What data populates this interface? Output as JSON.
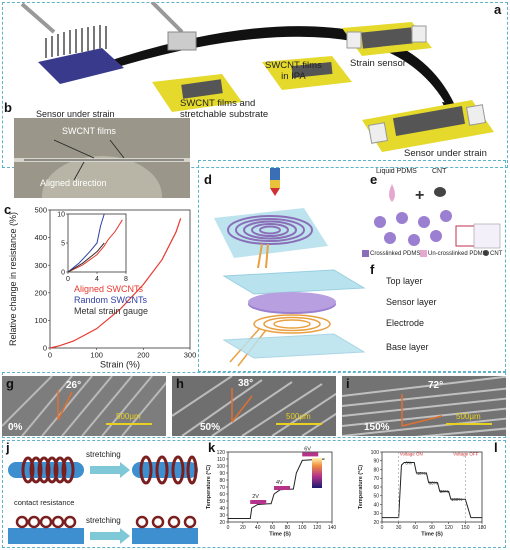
{
  "panels": {
    "a": {
      "label": "a",
      "captions": {
        "films_substrate_1": "SWCNT films and",
        "films_substrate_2": "stretchable substrate",
        "films_ipa_1": "SWCNT films",
        "films_ipa_2": "in IPA",
        "strain_sensor": "Strain sensor",
        "sensor_under_strain": "Sensor under strain"
      }
    },
    "b": {
      "label": "b",
      "title": "Sensor under strain",
      "films": "SWCNT films",
      "aligned": "Aligned direction"
    },
    "c": {
      "label": "c"
    },
    "d": {
      "label": "d"
    },
    "e": {
      "label": "e",
      "liquid_pdms": "Liquid PDMS",
      "cnt": "CNT",
      "legend_crosslinked": "Crosslinked PDMS",
      "legend_uncrosslinked": "Un-crosslinked PDMS",
      "legend_cnt": "CNT"
    },
    "f": {
      "label": "f",
      "layers": [
        "Top layer",
        "Sensor layer",
        "Electrode",
        "Base layer"
      ]
    },
    "g": {
      "label": "g",
      "angle": "26°",
      "strain": "0%",
      "scale": "500μm"
    },
    "h": {
      "label": "h",
      "angle": "38°",
      "strain": "50%",
      "scale": "500μm"
    },
    "i": {
      "label": "i",
      "angle": "72°",
      "strain": "150%",
      "scale": "500μm"
    },
    "j": {
      "label": "j",
      "stretch_top": "stretching",
      "stretch_bottom": "stretching",
      "contact": "contact resistance"
    },
    "k": {
      "label": "k"
    },
    "l": {
      "label": "l"
    }
  },
  "chart_data": [
    {
      "panel": "c",
      "type": "line",
      "xlabel": "Strain (%)",
      "ylabel": "Relative change in resistance (%)",
      "xlim": [
        0,
        300
      ],
      "ylim": [
        0,
        500
      ],
      "xticks": [
        0,
        100,
        200,
        300
      ],
      "yticks": [
        0,
        50,
        100,
        150,
        200,
        250,
        300,
        350,
        400,
        450,
        500
      ],
      "legend": [
        "Aligned SWCNTs",
        "Random SWCNTs",
        "Metal strain gauge"
      ],
      "legend_colors": [
        "#e8392f",
        "#2e3fa3",
        "#333333"
      ],
      "series": [
        {
          "name": "Aligned SWCNTs",
          "color": "#e8392f",
          "x": [
            0,
            20,
            50,
            100,
            150,
            200,
            240,
            270,
            280
          ],
          "y": [
            0,
            8,
            25,
            70,
            140,
            230,
            320,
            420,
            470
          ]
        }
      ],
      "inset": {
        "xlim": [
          0,
          8
        ],
        "ylim": [
          0,
          10
        ],
        "xticks": [
          0,
          4,
          8
        ],
        "yticks": [
          0,
          5,
          10
        ],
        "series": [
          {
            "name": "Aligned SWCNTs",
            "color": "#e8392f",
            "x": [
              0,
              2,
              4,
              5,
              5.5,
              6.5,
              7.5
            ],
            "y": [
              0,
              1.2,
              3,
              4.5,
              5.5,
              7,
              9
            ]
          },
          {
            "name": "Random SWCNTs",
            "color": "#2e3fa3",
            "x": [
              0,
              1.5,
              3,
              4,
              4.5,
              5
            ],
            "y": [
              0,
              1.5,
              3.5,
              5,
              8,
              10
            ]
          },
          {
            "name": "Metal strain gauge",
            "color": "#333333",
            "x": [
              0,
              2,
              4,
              5
            ],
            "y": [
              0,
              1.5,
              3.5,
              5
            ]
          }
        ]
      }
    },
    {
      "panel": "k",
      "type": "line",
      "xlabel": "Time (S)",
      "ylabel": "Temperature (°C)",
      "xlim": [
        0,
        140
      ],
      "ylim": [
        20,
        120
      ],
      "xticks": [
        0,
        20,
        40,
        60,
        80,
        100,
        120,
        140
      ],
      "yticks": [
        20,
        30,
        40,
        50,
        60,
        70,
        80,
        90,
        100,
        110,
        120
      ],
      "annotations": [
        "2V",
        "4V",
        "6V"
      ],
      "series": [
        {
          "name": "",
          "color": "#222222",
          "x": [
            0,
            30,
            32,
            40,
            55,
            58,
            62,
            70,
            85,
            88,
            92,
            100,
            130
          ],
          "y": [
            25,
            25,
            40,
            45,
            46,
            46,
            60,
            66,
            67,
            67,
            90,
            108,
            110
          ]
        }
      ]
    },
    {
      "panel": "l",
      "type": "line",
      "xlabel": "Time (S)",
      "ylabel": "Temperature (°C)",
      "xlim": [
        0,
        180
      ],
      "ylim": [
        20,
        100
      ],
      "xticks": [
        0,
        30,
        60,
        90,
        120,
        150,
        180
      ],
      "yticks": [
        20,
        30,
        40,
        50,
        60,
        70,
        80,
        90,
        100
      ],
      "annotations": [
        "Voltage ON",
        "Voltage OFF",
        "0%",
        "40%",
        "60%",
        "80%",
        "100%"
      ],
      "series": [
        {
          "name": "",
          "color": "#222222",
          "x": [
            0,
            30,
            35,
            40,
            58,
            62,
            80,
            84,
            100,
            104,
            120,
            124,
            140,
            150,
            160,
            180
          ],
          "y": [
            25,
            25,
            85,
            88,
            88,
            76,
            76,
            65,
            65,
            55,
            55,
            46,
            46,
            46,
            25,
            25
          ]
        }
      ]
    }
  ]
}
